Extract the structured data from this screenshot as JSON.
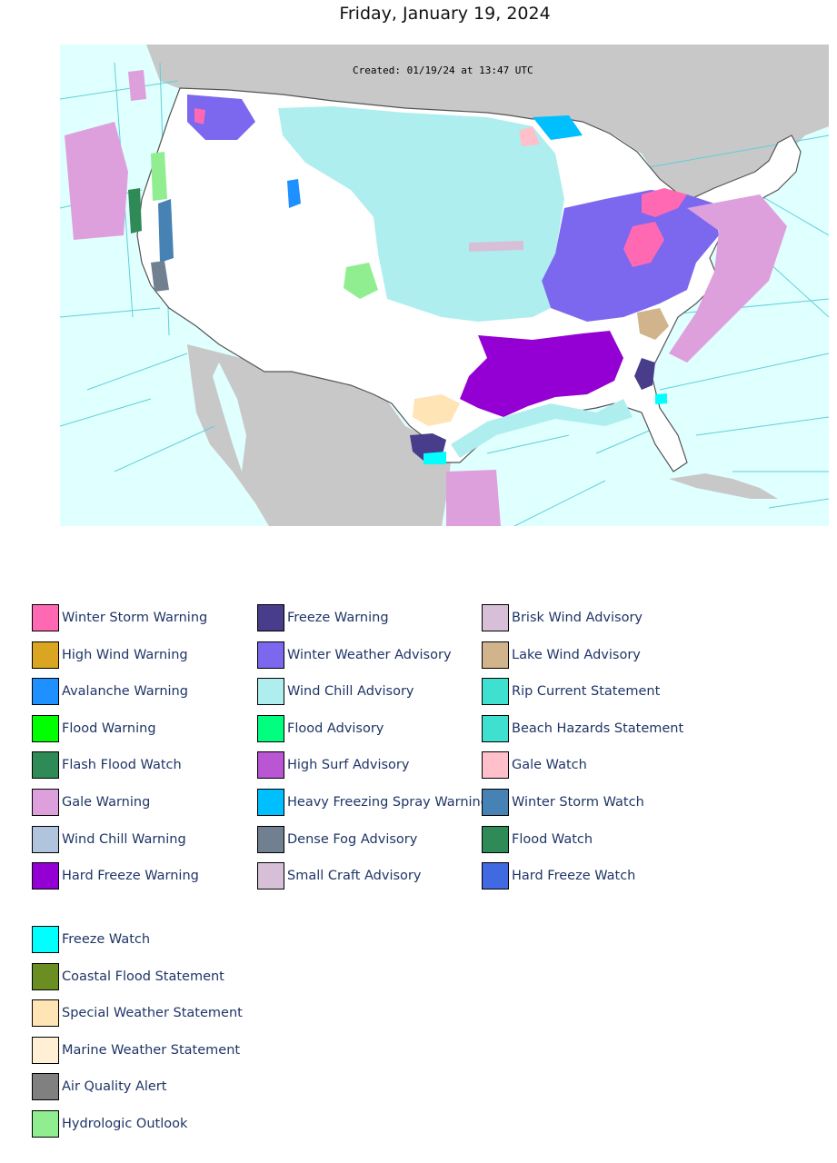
{
  "title": "Friday, January 19, 2024",
  "map": {
    "created_label": "Created: 01/19/24 at 13:47 UTC",
    "colors": {
      "ocean": "#e0ffff",
      "land": "#ffffff",
      "foreign_land": "#c8c8c8",
      "zone_lines": "#5fcfd8"
    }
  },
  "legend": [
    {
      "label": "Winter Storm Warning",
      "color": "#ff69b4"
    },
    {
      "label": "High Wind Warning",
      "color": "#daa520"
    },
    {
      "label": "Avalanche Warning",
      "color": "#1e90ff"
    },
    {
      "label": "Flood Warning",
      "color": "#00ff00"
    },
    {
      "label": "Flash Flood Watch",
      "color": "#2e8b57"
    },
    {
      "label": "Gale Warning",
      "color": "#dda0dd"
    },
    {
      "label": "Wind Chill Warning",
      "color": "#b0c4de"
    },
    {
      "label": "Hard Freeze Warning",
      "color": "#9400d3"
    },
    {
      "label": "Freeze Warning",
      "color": "#483d8b"
    },
    {
      "label": "Winter Weather Advisory",
      "color": "#7b68ee"
    },
    {
      "label": "Wind Chill Advisory",
      "color": "#afeeee"
    },
    {
      "label": "Flood Advisory",
      "color": "#00ff7f"
    },
    {
      "label": "High Surf Advisory",
      "color": "#ba55d3"
    },
    {
      "label": "Heavy Freezing Spray Warning",
      "color": "#00bfff"
    },
    {
      "label": "Dense Fog Advisory",
      "color": "#708090"
    },
    {
      "label": "Small Craft Advisory",
      "color": "#d8bfd8"
    },
    {
      "label": "Brisk Wind Advisory",
      "color": "#d8bfd8"
    },
    {
      "label": "Lake Wind Advisory",
      "color": "#d2b48c"
    },
    {
      "label": "Rip Current Statement",
      "color": "#40e0d0"
    },
    {
      "label": "Beach Hazards Statement",
      "color": "#40e0d0"
    },
    {
      "label": "Gale Watch",
      "color": "#ffc0cb"
    },
    {
      "label": "Winter Storm Watch",
      "color": "#4682b4"
    },
    {
      "label": "Flood Watch",
      "color": "#2e8b57"
    },
    {
      "label": "Hard Freeze Watch",
      "color": "#4169e1"
    },
    {
      "label": "Freeze Watch",
      "color": "#00ffff"
    },
    {
      "label": "Coastal Flood Statement",
      "color": "#6b8e23"
    },
    {
      "label": "Special Weather Statement",
      "color": "#ffe4b5"
    },
    {
      "label": "Marine Weather Statement",
      "color": "#ffefd5"
    },
    {
      "label": "Air Quality Alert",
      "color": "#808080"
    },
    {
      "label": "Hydrologic Outlook",
      "color": "#90ee90"
    }
  ]
}
